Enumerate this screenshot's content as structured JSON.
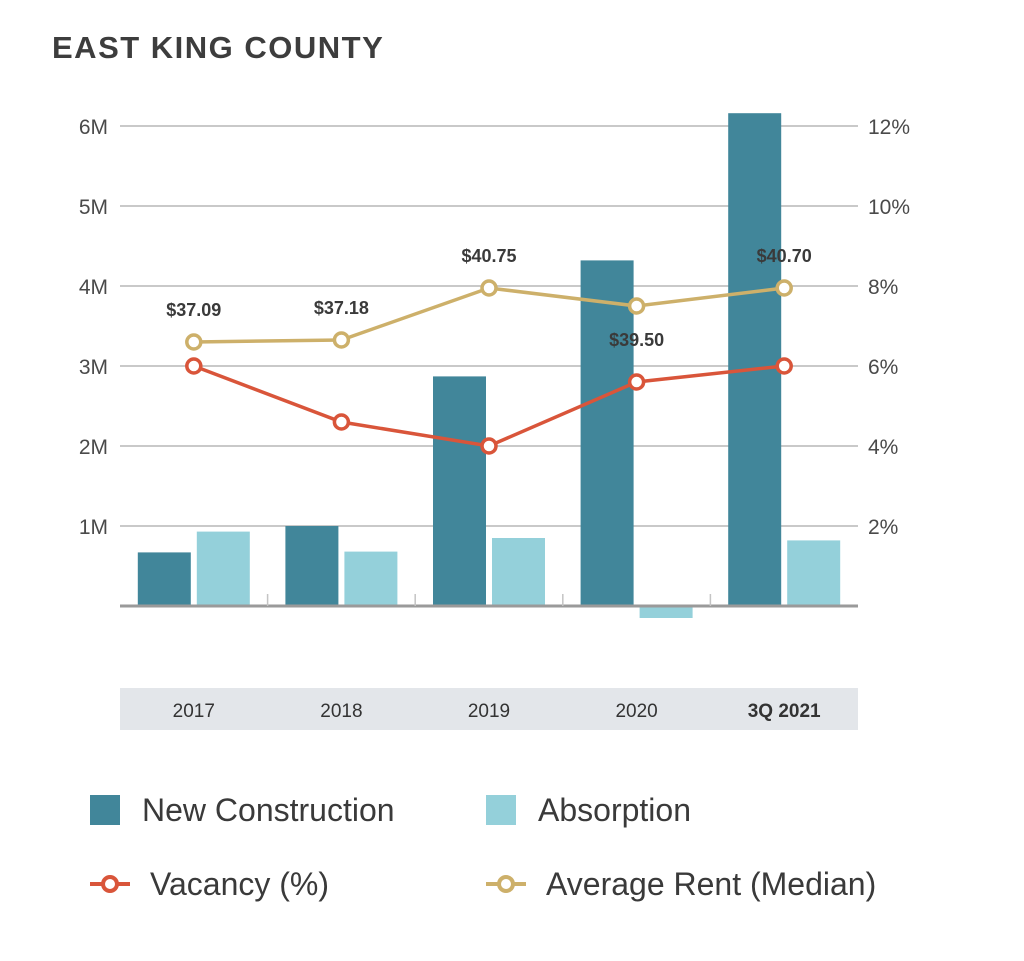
{
  "chart_data": {
    "type": "bar",
    "title": "EAST KING COUNTY",
    "categories": [
      "2017",
      "2018",
      "2019",
      "2020",
      "3Q 2021"
    ],
    "categories_bold": [
      false,
      false,
      false,
      false,
      true
    ],
    "left_axis": {
      "ticks": [
        "1M",
        "2M",
        "3M",
        "4M",
        "5M",
        "6M"
      ],
      "tick_values": [
        1000000,
        2000000,
        3000000,
        4000000,
        5000000,
        6000000
      ],
      "ylim": [
        0,
        6200000
      ]
    },
    "right_axis": {
      "ticks": [
        "2%",
        "4%",
        "6%",
        "8%",
        "10%",
        "12%"
      ],
      "tick_values": [
        2,
        4,
        6,
        8,
        10,
        12
      ],
      "ylim": [
        0,
        12.4
      ]
    },
    "series": [
      {
        "name": "New Construction",
        "type": "bar",
        "axis": "left",
        "color": "#41869a",
        "values": [
          670000,
          1000000,
          2870000,
          4320000,
          6160000
        ]
      },
      {
        "name": "Absorption",
        "type": "bar",
        "axis": "left",
        "color": "#94d0da",
        "values": [
          930000,
          680000,
          850000,
          -150000,
          820000
        ]
      },
      {
        "name": "Vacancy (%)",
        "type": "line",
        "axis": "right",
        "color": "#d9553a",
        "values": [
          6.0,
          4.6,
          4.0,
          5.6,
          6.0
        ]
      },
      {
        "name": "Average Rent (Median)",
        "type": "line",
        "axis": "right",
        "color": "#cdb06a",
        "values": [
          6.6,
          6.65,
          7.95,
          7.5,
          7.95
        ],
        "labels": [
          "$37.09",
          "$37.18",
          "$40.75",
          "$39.50",
          "$40.70"
        ]
      }
    ],
    "legend_position": "bottom",
    "grid": true
  }
}
